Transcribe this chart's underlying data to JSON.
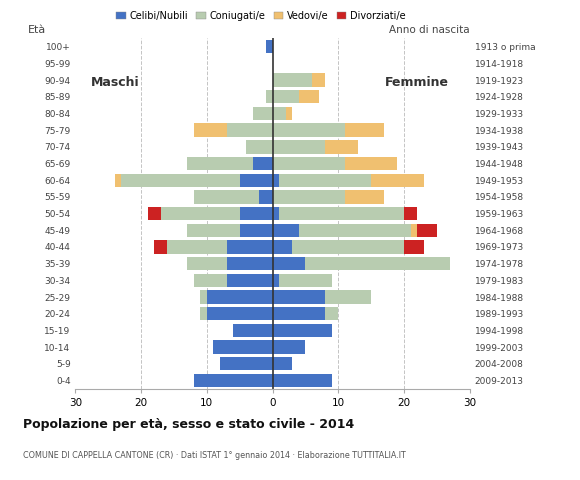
{
  "age_groups": [
    "0-4",
    "5-9",
    "10-14",
    "15-19",
    "20-24",
    "25-29",
    "30-34",
    "35-39",
    "40-44",
    "45-49",
    "50-54",
    "55-59",
    "60-64",
    "65-69",
    "70-74",
    "75-79",
    "80-84",
    "85-89",
    "90-94",
    "95-99",
    "100+"
  ],
  "birth_years": [
    "2009-2013",
    "2004-2008",
    "1999-2003",
    "1994-1998",
    "1989-1993",
    "1984-1988",
    "1979-1983",
    "1974-1978",
    "1969-1973",
    "1964-1968",
    "1959-1963",
    "1954-1958",
    "1949-1953",
    "1944-1948",
    "1939-1943",
    "1934-1938",
    "1929-1933",
    "1924-1928",
    "1919-1923",
    "1914-1918",
    "1913 o prima"
  ],
  "colors": {
    "celibi": "#4472C4",
    "coniugati": "#B8CCB0",
    "vedovi": "#F0C070",
    "divorziati": "#CC2222"
  },
  "males": {
    "celibi": [
      12,
      8,
      9,
      6,
      10,
      10,
      7,
      7,
      7,
      5,
      5,
      2,
      5,
      3,
      0,
      0,
      0,
      0,
      0,
      0,
      1
    ],
    "coniugati": [
      0,
      0,
      0,
      0,
      1,
      1,
      5,
      6,
      9,
      8,
      12,
      10,
      18,
      10,
      4,
      7,
      3,
      1,
      0,
      0,
      0
    ],
    "vedovi": [
      0,
      0,
      0,
      0,
      0,
      0,
      0,
      0,
      0,
      0,
      0,
      0,
      1,
      0,
      0,
      5,
      0,
      0,
      0,
      0,
      0
    ],
    "divorziati": [
      0,
      0,
      0,
      0,
      0,
      0,
      0,
      0,
      2,
      0,
      2,
      0,
      0,
      0,
      0,
      0,
      0,
      0,
      0,
      0,
      0
    ]
  },
  "females": {
    "celibi": [
      9,
      3,
      5,
      9,
      8,
      8,
      1,
      5,
      3,
      4,
      1,
      0,
      1,
      0,
      0,
      0,
      0,
      0,
      0,
      0,
      0
    ],
    "coniugati": [
      0,
      0,
      0,
      0,
      2,
      7,
      8,
      22,
      17,
      17,
      19,
      11,
      14,
      11,
      8,
      11,
      2,
      4,
      6,
      0,
      0
    ],
    "vedovi": [
      0,
      0,
      0,
      0,
      0,
      0,
      0,
      0,
      0,
      1,
      0,
      6,
      8,
      8,
      5,
      6,
      1,
      3,
      2,
      0,
      0
    ],
    "divorziati": [
      0,
      0,
      0,
      0,
      0,
      0,
      0,
      0,
      3,
      3,
      2,
      0,
      0,
      0,
      0,
      0,
      0,
      0,
      0,
      0,
      0
    ]
  },
  "title": "Popolazione per età, sesso e stato civile - 2014",
  "subtitle": "COMUNE DI CAPPELLA CANTONE (CR) · Dati ISTAT 1° gennaio 2014 · Elaborazione TUTTITALIA.IT",
  "xlim": 30,
  "label_maschi": "Maschi",
  "label_femmine": "Femmine",
  "ylabel_left": "Età",
  "ylabel_right": "Anno di nascita",
  "legend_labels": [
    "Celibi/Nubili",
    "Coniugati/e",
    "Vedovi/e",
    "Divorziati/e"
  ],
  "bg_color": "#FFFFFF",
  "grid_color": "#AAAAAA"
}
